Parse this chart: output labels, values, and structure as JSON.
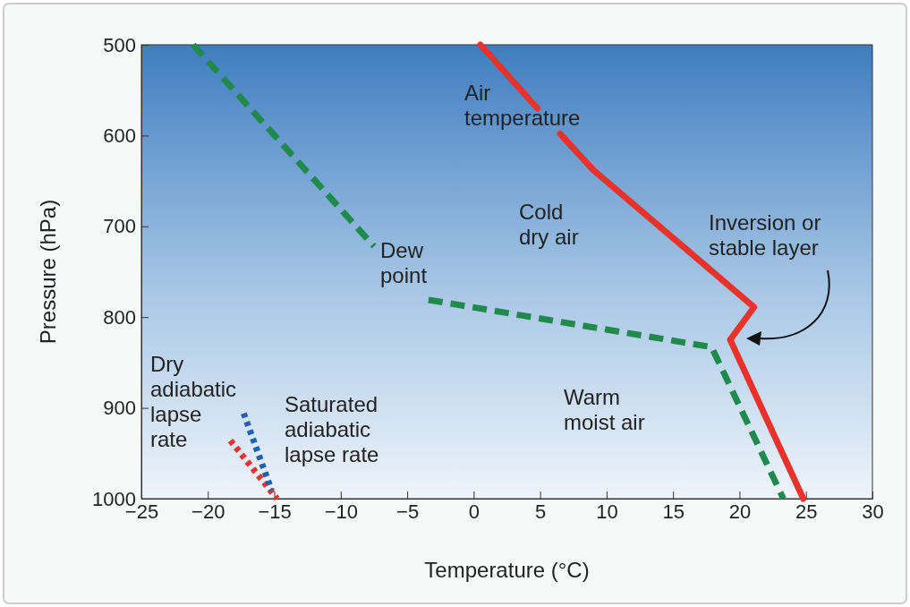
{
  "chart_data": {
    "type": "line",
    "xlabel": "Temperature (°C)",
    "ylabel": "Pressure (hPa)",
    "xlim": [
      -25,
      30
    ],
    "xticks": [
      -25,
      -20,
      -15,
      -10,
      -5,
      0,
      5,
      10,
      15,
      20,
      25,
      30
    ],
    "ylim": [
      1000,
      500
    ],
    "yticks": [
      500,
      600,
      700,
      800,
      900,
      1000
    ],
    "grid": false,
    "series": [
      {
        "color": "#e8322b",
        "line_style": "solid",
        "x": [
          0.5,
          4.8,
          null,
          6.5,
          9,
          21.1,
          19.3,
          24.8
        ],
        "values": [
          500,
          570,
          null,
          598,
          638,
          789,
          825,
          1000
        ]
      },
      {
        "color": "#1f8a4c",
        "line_style": "dashed",
        "x": [
          -21.1,
          -7.5,
          null,
          -3.4,
          17.9,
          23.3
        ],
        "values": [
          500,
          722,
          null,
          781,
          833,
          1000
        ]
      },
      {
        "color": "#e8322b",
        "line_style": "dotted",
        "x": [
          -18.3,
          -14.8
        ],
        "values": [
          936,
          1000
        ]
      },
      {
        "color": "#2460b0",
        "line_style": "dotted",
        "x": [
          -17.3,
          -15.2
        ],
        "values": [
          906,
          991
        ]
      }
    ],
    "annotations": [
      "Air\ntemperature",
      "Cold\ndry air",
      "Inversion or\nstable layer",
      "Dew\npoint",
      "Dry\nadiabatic\nlapse\nrate",
      "Saturated\nadiabatic\nlapse rate",
      "Warm\nmoist air"
    ]
  }
}
